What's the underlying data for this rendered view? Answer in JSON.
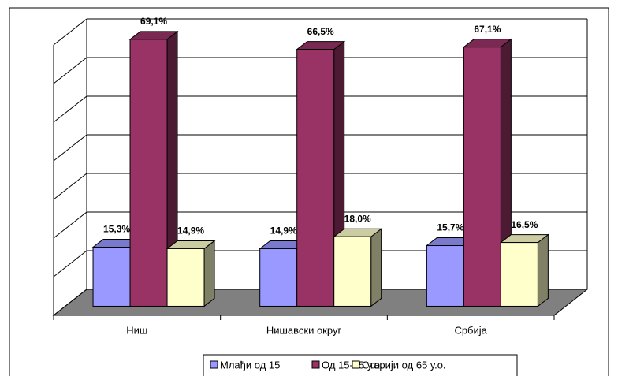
{
  "chart_data": {
    "type": "bar3d",
    "categories": [
      "Ниш",
      "Нишавски округ",
      "Србија"
    ],
    "series": [
      {
        "name": "Млађи од 15",
        "color": "#9999ff",
        "values": [
          15.3,
          14.9,
          15.7
        ],
        "value_labels": [
          "15,3%",
          "14,9%",
          "15,7%"
        ]
      },
      {
        "name": "Од 15-65 у.о.",
        "color": "#993366",
        "values": [
          69.1,
          66.5,
          67.1
        ],
        "value_labels": [
          "69,1%",
          "66,5%",
          "67,1%"
        ]
      },
      {
        "name": "Старији од 65 у.о.",
        "color": "#ffffcc",
        "values": [
          14.9,
          18.0,
          16.5
        ],
        "value_labels": [
          "14,9%",
          "18,0%",
          "16,5%"
        ]
      }
    ],
    "ylim": [
      0,
      70
    ],
    "yticks": [
      0,
      10,
      20,
      30,
      40,
      50,
      60,
      70
    ],
    "grid": true,
    "legend": "bottom"
  }
}
